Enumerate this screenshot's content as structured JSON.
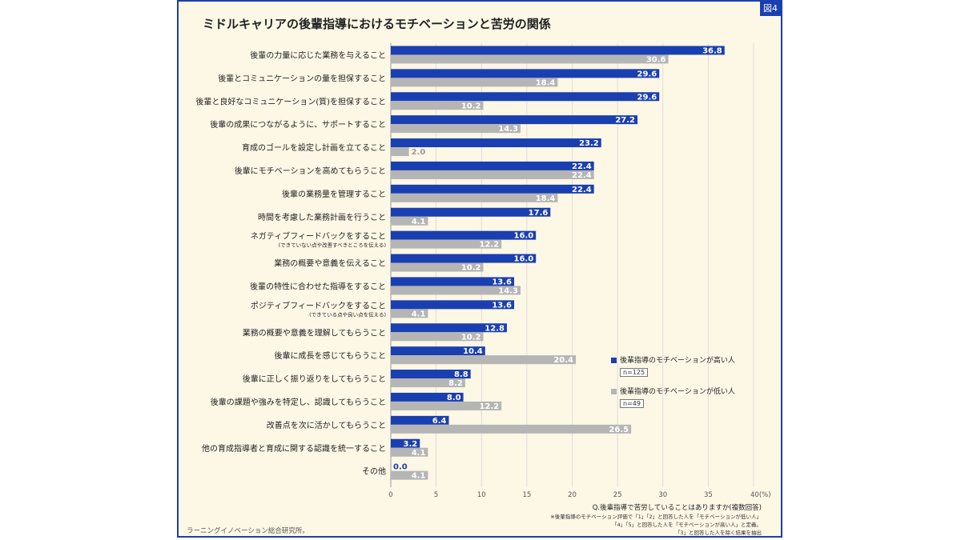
{
  "figure_tag": "図4",
  "chart_data": {
    "type": "bar",
    "orientation": "horizontal",
    "title": "ミドルキャリアの後輩指導におけるモチベーションと苦労の関係",
    "categories": [
      "後輩の力量に応じた業務を与えること",
      "後輩とコミュニケーションの量を担保すること",
      "後輩と良好なコミュニケーション(質)を担保すること",
      "後輩の成果につながるように、サポートすること",
      "育成のゴールを設定し計画を立てること",
      "後輩にモチベーションを高めてもらうこと",
      "後輩の業務量を管理すること",
      "時間を考慮した業務計画を行うこと",
      "ネガティブフィードバックをすること",
      "業務の概要や意義を伝えること",
      "後輩の特性に合わせた指導をすること",
      "ポジティブフィードバックをすること",
      "業務の概要や意義を理解してもらうこと",
      "後輩に成長を感じてもらうこと",
      "後輩に正しく振り返りをしてもらうこと",
      "後輩の課題や強みを特定し、認識してもらうこと",
      "改善点を次に活かしてもらうこと",
      "他の育成指導者と育成に関する認識を統一すること",
      "その他"
    ],
    "category_notes": {
      "8": "(できていない点や改善すべきところを伝える)",
      "11": "(できている点や良い点を伝える)"
    },
    "series": [
      {
        "name": "後輩指導のモチベーションが高い人",
        "n": "n=125",
        "color": "#1a3fb0",
        "values": [
          36.8,
          29.6,
          29.6,
          27.2,
          23.2,
          22.4,
          22.4,
          17.6,
          16.0,
          16.0,
          13.6,
          13.6,
          12.8,
          10.4,
          8.8,
          8.0,
          6.4,
          3.2,
          0.0
        ]
      },
      {
        "name": "後輩指導のモチベーションが低い人",
        "n": "n=49",
        "color": "#b5b5b5",
        "values": [
          30.6,
          18.4,
          10.2,
          14.3,
          2.0,
          22.4,
          18.4,
          4.1,
          12.2,
          10.2,
          14.3,
          4.1,
          10.2,
          20.4,
          8.2,
          12.2,
          26.5,
          4.1,
          4.1
        ]
      }
    ],
    "xlim": [
      0,
      40
    ],
    "x_ticks": [
      "0",
      "5",
      "10",
      "15",
      "20",
      "25",
      "30",
      "35",
      "40(%)"
    ],
    "grid": true,
    "legend_position": "right"
  },
  "question": "Q.後輩指導で苦労していることはありますか(複数回答)",
  "notes": [
    "※後輩指導のモチベーション評価で「1」「2」と回答した人を「モチベーションが低い人」",
    "「4」「5」と回答した人を「モチベーションが高い人」と定義。",
    "「3」と回答した人を除く結果を抽出"
  ],
  "source": "ラーニングイノベーション総合研究所。"
}
